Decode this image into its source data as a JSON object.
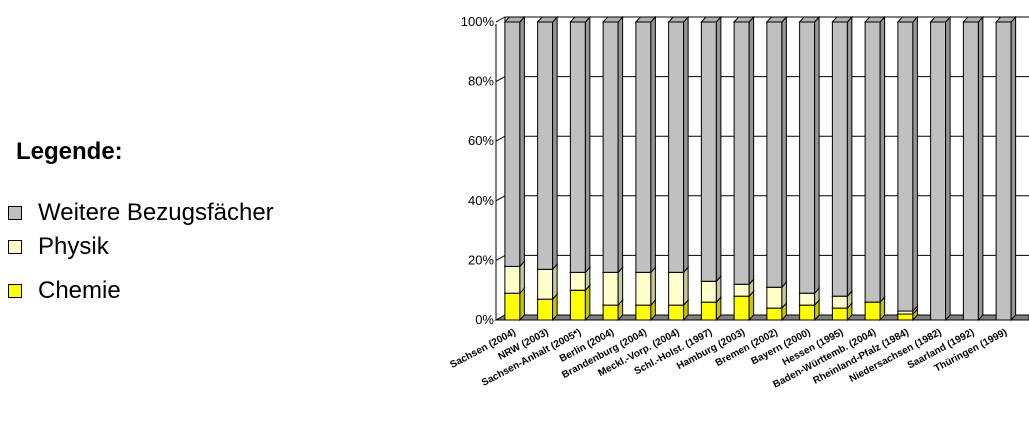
{
  "legend": {
    "title": "Legende:",
    "items": [
      {
        "label": "Weitere Bezugsfächer",
        "color": "#c0c0c0"
      },
      {
        "label": "Physik",
        "color": "#ffffcc"
      },
      {
        "label": "Chemie",
        "color": "#ffff00"
      }
    ]
  },
  "chart_data": {
    "type": "bar",
    "stacked": true,
    "percent": true,
    "three_d": true,
    "categories": [
      "Sachsen (2004)",
      "NRW (2003)",
      "Sachsen-Anhalt (2005*)",
      "Berlin (2004)",
      "Brandenburg (2004)",
      "Meckl.-Vorp. (2004)",
      "Schl.-Holst. (1997)",
      "Hamburg (2003)",
      "Bremen (2002)",
      "Bayern (2000)",
      "Hessen (1995)",
      "Baden-Württemb. (2004)",
      "Rheinland-Pfalz (1984)",
      "Niedersachsen (1982)",
      "Saarland (1992)",
      "Thüringen (1999)"
    ],
    "series": [
      {
        "name": "Chemie",
        "color": "#ffff00",
        "values": [
          9,
          7,
          10,
          5,
          5,
          5,
          6,
          8,
          4,
          5,
          4,
          6,
          2,
          0,
          0,
          0
        ]
      },
      {
        "name": "Physik",
        "color": "#ffffcc",
        "values": [
          9,
          10,
          6,
          11,
          11,
          11,
          7,
          4,
          7,
          4,
          4,
          0,
          1,
          0,
          0,
          0
        ]
      },
      {
        "name": "Weitere Bezugsfächer",
        "color": "#c0c0c0",
        "values": [
          82,
          83,
          84,
          84,
          84,
          84,
          87,
          88,
          89,
          91,
          92,
          94,
          97,
          100,
          100,
          100
        ]
      }
    ],
    "yticks": [
      "0%",
      "20%",
      "40%",
      "60%",
      "80%",
      "100%"
    ],
    "ylim": [
      0,
      100
    ],
    "grid": true,
    "legend_position": "left"
  }
}
